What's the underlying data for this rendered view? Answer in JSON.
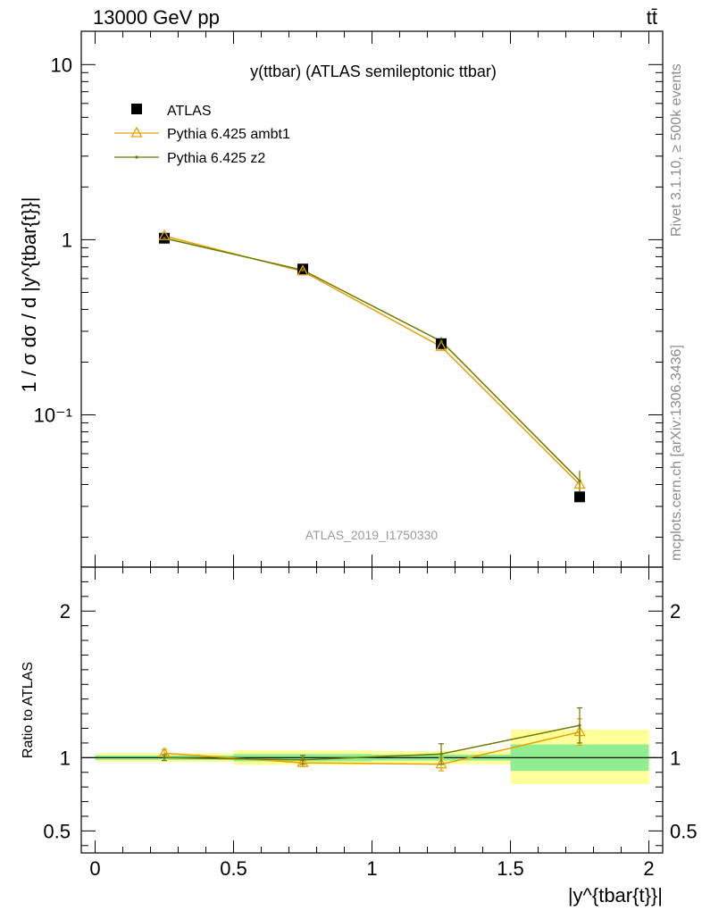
{
  "header": {
    "energy_label": "13000 GeV pp",
    "process_label": "tt̄"
  },
  "side_labels": {
    "rivet": "Rivet 3.1.10, ≥ 500k events",
    "mcplots": "mcplots.cern.ch [arXiv:1306.3436]"
  },
  "colors": {
    "data": "#000000",
    "ambt1": "#e8a000",
    "z2": "#6b7a00",
    "band_inner": "#90ee90",
    "band_outer": "#ffff99",
    "side_text": "#8c8c8c"
  },
  "chart_data": [
    {
      "type": "line",
      "title": "y(ttbar) (ATLAS semileptonic ttbar)",
      "watermark": "ATLAS_2019_I1750330",
      "ylabel": "1 / σ dσ / d |y^{tbar{t}}|",
      "yscale": "log",
      "ylim": [
        0.0135,
        15.5
      ],
      "xlim": [
        -0.05,
        2.05
      ],
      "yticks": [
        {
          "value": 10,
          "label": "10"
        },
        {
          "value": 1,
          "label": "1"
        },
        {
          "value": 0.1,
          "label": "10⁻¹"
        }
      ],
      "legend_position": "top-left",
      "x": [
        0.25,
        0.75,
        1.25,
        1.75
      ],
      "bin_edges": [
        0,
        0.5,
        1,
        1.5,
        2
      ],
      "series": [
        {
          "name": "ATLAS",
          "marker": "square",
          "values": [
            1.02,
            0.68,
            0.255,
            0.034
          ]
        },
        {
          "name": "Pythia 6.425 ambt1",
          "marker": "triangle",
          "values": [
            1.05,
            0.66,
            0.245,
            0.04
          ],
          "errors": [
            0.02,
            0.01,
            0.01,
            0.007
          ]
        },
        {
          "name": "Pythia 6.425 z2",
          "marker": "dot",
          "values": [
            1.02,
            0.67,
            0.263,
            0.042
          ],
          "errors": [
            0.02,
            0.01,
            0.015,
            0.006
          ]
        }
      ]
    },
    {
      "type": "line",
      "ylabel": "Ratio to ATLAS",
      "xlabel": "|y^{tbar{t}}|",
      "ylim": [
        0.35,
        2.3
      ],
      "xlim": [
        -0.05,
        2.05
      ],
      "yticks": [
        {
          "value": 2,
          "label": "2"
        },
        {
          "value": 1,
          "label": "1"
        },
        {
          "value": 0.5,
          "label": "0.5"
        }
      ],
      "xticks": [
        {
          "value": 0,
          "label": "0"
        },
        {
          "value": 0.5,
          "label": "0.5"
        },
        {
          "value": 1,
          "label": "1"
        },
        {
          "value": 1.5,
          "label": "1.5"
        },
        {
          "value": 2,
          "label": "2"
        }
      ],
      "bands": [
        {
          "x0": 0,
          "x1": 0.5,
          "inner": [
            0.985,
            1.015
          ],
          "outer": [
            0.97,
            1.03
          ]
        },
        {
          "x0": 0.5,
          "x1": 1,
          "inner": [
            0.975,
            1.025
          ],
          "outer": [
            0.95,
            1.05
          ]
        },
        {
          "x0": 1,
          "x1": 1.5,
          "inner": [
            0.98,
            1.02
          ],
          "outer": [
            0.955,
            1.045
          ]
        },
        {
          "x0": 1.5,
          "x1": 2,
          "inner": [
            0.91,
            1.09
          ],
          "outer": [
            0.82,
            1.19
          ]
        }
      ],
      "x": [
        0.25,
        0.75,
        1.25,
        1.75
      ],
      "series": [
        {
          "name": "Pythia 6.425 ambt1",
          "values": [
            1.03,
            0.965,
            0.955,
            1.175
          ],
          "errors": [
            0.025,
            0.025,
            0.045,
            0.09
          ]
        },
        {
          "name": "Pythia 6.425 z2",
          "values": [
            1.0,
            0.985,
            1.025,
            1.22
          ],
          "errors": [
            0.02,
            0.03,
            0.07,
            0.12
          ]
        }
      ]
    }
  ]
}
